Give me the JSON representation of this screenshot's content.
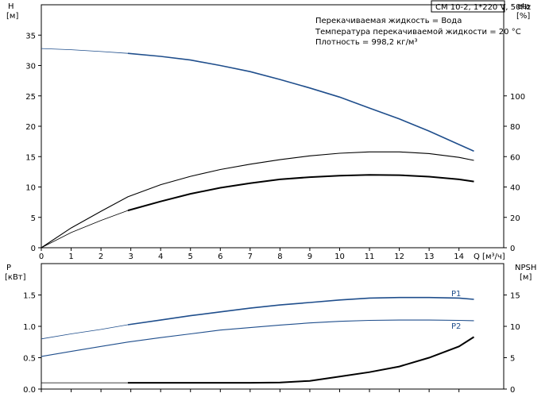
{
  "title": "CM 10-2, 1*220 V, 50Hz",
  "info_lines": [
    "Перекачиваемая жидкость = Вода",
    "Температура перекачиваемой жидкости = 20 °C",
    "Плотность = 998,2 кг/м³"
  ],
  "colors": {
    "blue": "#1f4e8c",
    "black": "#000000"
  },
  "chart_data": [
    {
      "type": "line",
      "name": "head-efficiency",
      "x_axis": {
        "label": "Q [м³/ч]",
        "range": [
          0,
          15.5
        ],
        "ticks": [
          0,
          1,
          2,
          3,
          4,
          5,
          6,
          7,
          8,
          9,
          10,
          11,
          12,
          13,
          14
        ]
      },
      "y_axis_left": {
        "label": "H",
        "unit": "[м]",
        "range": [
          0,
          40
        ],
        "ticks": [
          0,
          5,
          10,
          15,
          20,
          25,
          30,
          35
        ]
      },
      "y_axis_right": {
        "label": "eta",
        "unit": "[%]",
        "range": [
          0,
          160
        ],
        "ticks": [
          0,
          20,
          40,
          60,
          80,
          100
        ]
      },
      "series": [
        {
          "axis": "left",
          "color": "#1f4e8c",
          "x": [
            0,
            1,
            2,
            2.9,
            4,
            5,
            6,
            7,
            8,
            9,
            10,
            11,
            12,
            13,
            14,
            14.5
          ],
          "y": [
            32.8,
            32.6,
            32.3,
            32.0,
            31.5,
            30.9,
            30.0,
            29.0,
            27.7,
            26.3,
            24.8,
            23.0,
            21.2,
            19.2,
            17.0,
            15.9
          ],
          "solid_from": 2.9
        },
        {
          "axis": "right",
          "color": "#000000",
          "x": [
            0,
            1,
            2,
            2.9,
            4,
            5,
            6,
            7,
            8,
            9,
            10,
            11,
            12,
            13,
            14,
            14.5
          ],
          "y": [
            0,
            13,
            24,
            33.5,
            41.5,
            47,
            51.5,
            55,
            58,
            60.5,
            62.2,
            63.1,
            63.1,
            62,
            59.5,
            57.5
          ]
        },
        {
          "axis": "right",
          "color": "#000000",
          "x": [
            0,
            1,
            2,
            2.9,
            4,
            5,
            6,
            7,
            8,
            9,
            10,
            11,
            12,
            13,
            14,
            14.5
          ],
          "y": [
            0,
            10,
            18,
            24.5,
            30.5,
            35.5,
            39.5,
            42.5,
            45,
            46.5,
            47.5,
            48,
            47.8,
            46.8,
            45,
            43.6
          ],
          "solid_from": 2.9,
          "thick": true
        }
      ]
    },
    {
      "type": "line",
      "name": "power-npsh",
      "x_axis": {
        "range": [
          0,
          15.5
        ]
      },
      "y_axis_left": {
        "label": "P",
        "unit": "[кВт]",
        "range": [
          0,
          2
        ],
        "ticks": [
          "0.0",
          "0.5",
          "1.0",
          "1.5"
        ]
      },
      "y_axis_right": {
        "label": "NPSH",
        "unit": "[м]",
        "range": [
          0,
          20
        ],
        "ticks": [
          0,
          5,
          10,
          15
        ]
      },
      "series": [
        {
          "name": "P1",
          "axis": "left",
          "color": "#1f4e8c",
          "x": [
            0,
            1,
            2,
            2.9,
            4,
            5,
            6,
            7,
            8,
            9,
            10,
            11,
            12,
            13,
            14,
            14.5
          ],
          "y": [
            0.8,
            0.88,
            0.95,
            1.025,
            1.1,
            1.17,
            1.23,
            1.29,
            1.34,
            1.38,
            1.42,
            1.45,
            1.46,
            1.46,
            1.45,
            1.43
          ],
          "solid_from": 2.9
        },
        {
          "name": "P2",
          "axis": "left",
          "color": "#1f4e8c",
          "x": [
            0,
            1,
            2,
            2.9,
            4,
            5,
            6,
            7,
            8,
            9,
            10,
            11,
            12,
            13,
            14,
            14.5
          ],
          "y": [
            0.52,
            0.6,
            0.68,
            0.75,
            0.82,
            0.88,
            0.94,
            0.98,
            1.02,
            1.055,
            1.08,
            1.095,
            1.1,
            1.1,
            1.095,
            1.09
          ]
        },
        {
          "axis": "right",
          "color": "#000000",
          "x": [
            0,
            2.9,
            4,
            5,
            6,
            7,
            8,
            9,
            10,
            11,
            12,
            13,
            14,
            14.5
          ],
          "y": [
            1.0,
            1.0,
            1.0,
            1.0,
            1.0,
            1.0,
            1.05,
            1.3,
            2.0,
            2.7,
            3.6,
            5.0,
            6.8,
            8.3
          ],
          "solid_from": 2.9,
          "thick": true
        }
      ]
    }
  ]
}
